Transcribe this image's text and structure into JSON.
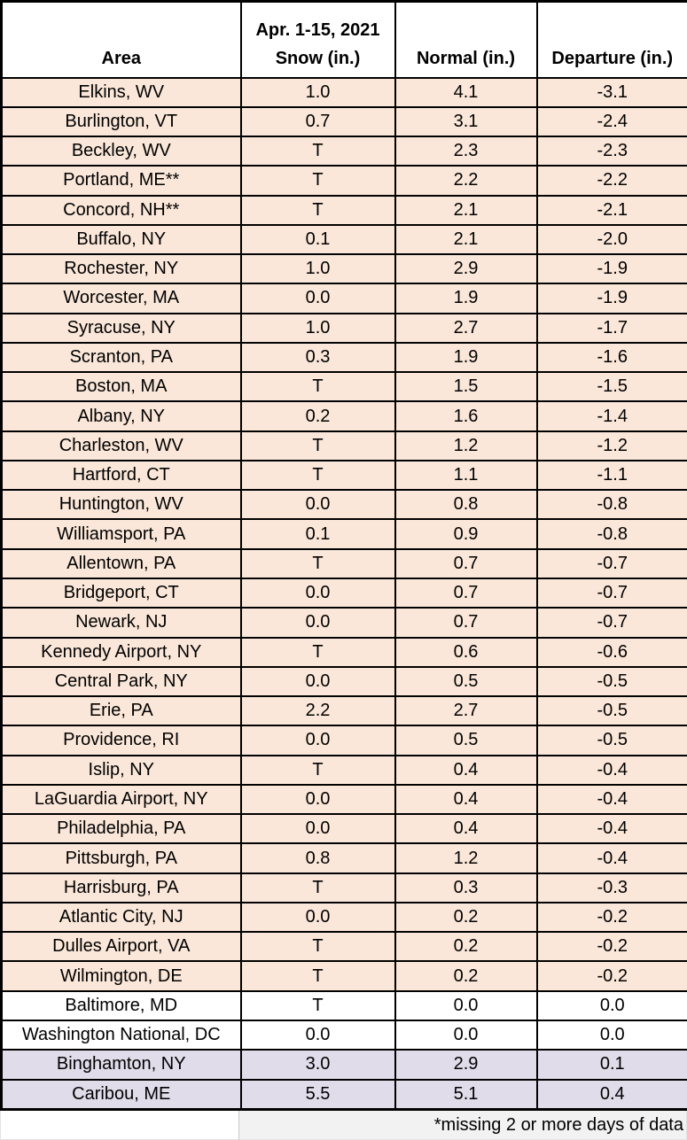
{
  "table": {
    "headers": {
      "area": "Area",
      "snow_line1": "Apr. 1-15, 2021",
      "snow_line2": "Snow (in.)",
      "normal": "Normal (in.)",
      "departure": "Departure (in.)"
    },
    "footnote": "*missing 2 or more days of data"
  },
  "colors": {
    "deficit_row_bg": "#fae7d9",
    "zero_row_bg": "#ffffff",
    "surplus_row_bg": "#e0dcea",
    "footer_bg": "#f2f2f2",
    "border": "#000000",
    "text": "#000000"
  },
  "chart_data": {
    "type": "table",
    "columns": [
      "Area",
      "Apr. 1-15, 2021 Snow (in.)",
      "Normal (in.)",
      "Departure (in.)"
    ],
    "rows": [
      [
        "Elkins, WV",
        "1.0",
        "4.1",
        "-3.1"
      ],
      [
        "Burlington, VT",
        "0.7",
        "3.1",
        "-2.4"
      ],
      [
        "Beckley, WV",
        "T",
        "2.3",
        "-2.3"
      ],
      [
        "Portland, ME**",
        "T",
        "2.2",
        "-2.2"
      ],
      [
        "Concord, NH**",
        "T",
        "2.1",
        "-2.1"
      ],
      [
        "Buffalo, NY",
        "0.1",
        "2.1",
        "-2.0"
      ],
      [
        "Rochester, NY",
        "1.0",
        "2.9",
        "-1.9"
      ],
      [
        "Worcester, MA",
        "0.0",
        "1.9",
        "-1.9"
      ],
      [
        "Syracuse, NY",
        "1.0",
        "2.7",
        "-1.7"
      ],
      [
        "Scranton, PA",
        "0.3",
        "1.9",
        "-1.6"
      ],
      [
        "Boston, MA",
        "T",
        "1.5",
        "-1.5"
      ],
      [
        "Albany, NY",
        "0.2",
        "1.6",
        "-1.4"
      ],
      [
        "Charleston, WV",
        "T",
        "1.2",
        "-1.2"
      ],
      [
        "Hartford, CT",
        "T",
        "1.1",
        "-1.1"
      ],
      [
        "Huntington, WV",
        "0.0",
        "0.8",
        "-0.8"
      ],
      [
        "Williamsport, PA",
        "0.1",
        "0.9",
        "-0.8"
      ],
      [
        "Allentown, PA",
        "T",
        "0.7",
        "-0.7"
      ],
      [
        "Bridgeport, CT",
        "0.0",
        "0.7",
        "-0.7"
      ],
      [
        "Newark, NJ",
        "0.0",
        "0.7",
        "-0.7"
      ],
      [
        "Kennedy Airport, NY",
        "T",
        "0.6",
        "-0.6"
      ],
      [
        "Central Park, NY",
        "0.0",
        "0.5",
        "-0.5"
      ],
      [
        "Erie, PA",
        "2.2",
        "2.7",
        "-0.5"
      ],
      [
        "Providence, RI",
        "0.0",
        "0.5",
        "-0.5"
      ],
      [
        "Islip, NY",
        "T",
        "0.4",
        "-0.4"
      ],
      [
        "LaGuardia Airport, NY",
        "0.0",
        "0.4",
        "-0.4"
      ],
      [
        "Philadelphia, PA",
        "0.0",
        "0.4",
        "-0.4"
      ],
      [
        "Pittsburgh, PA",
        "0.8",
        "1.2",
        "-0.4"
      ],
      [
        "Harrisburg, PA",
        "T",
        "0.3",
        "-0.3"
      ],
      [
        "Atlantic City, NJ",
        "0.0",
        "0.2",
        "-0.2"
      ],
      [
        "Dulles Airport, VA",
        "T",
        "0.2",
        "-0.2"
      ],
      [
        "Wilmington, DE",
        "T",
        "0.2",
        "-0.2"
      ],
      [
        "Baltimore, MD",
        "T",
        "0.0",
        "0.0"
      ],
      [
        "Washington National, DC",
        "0.0",
        "0.0",
        "0.0"
      ],
      [
        "Binghamton, NY",
        "3.0",
        "2.9",
        "0.1"
      ],
      [
        "Caribou, ME",
        "5.5",
        "5.1",
        "0.4"
      ]
    ],
    "footnote": "*missing 2 or more days of data",
    "legend_note_colors": {
      "below_normal": "#fae7d9",
      "zero_departure": "#ffffff",
      "above_normal": "#e0dcea"
    }
  }
}
